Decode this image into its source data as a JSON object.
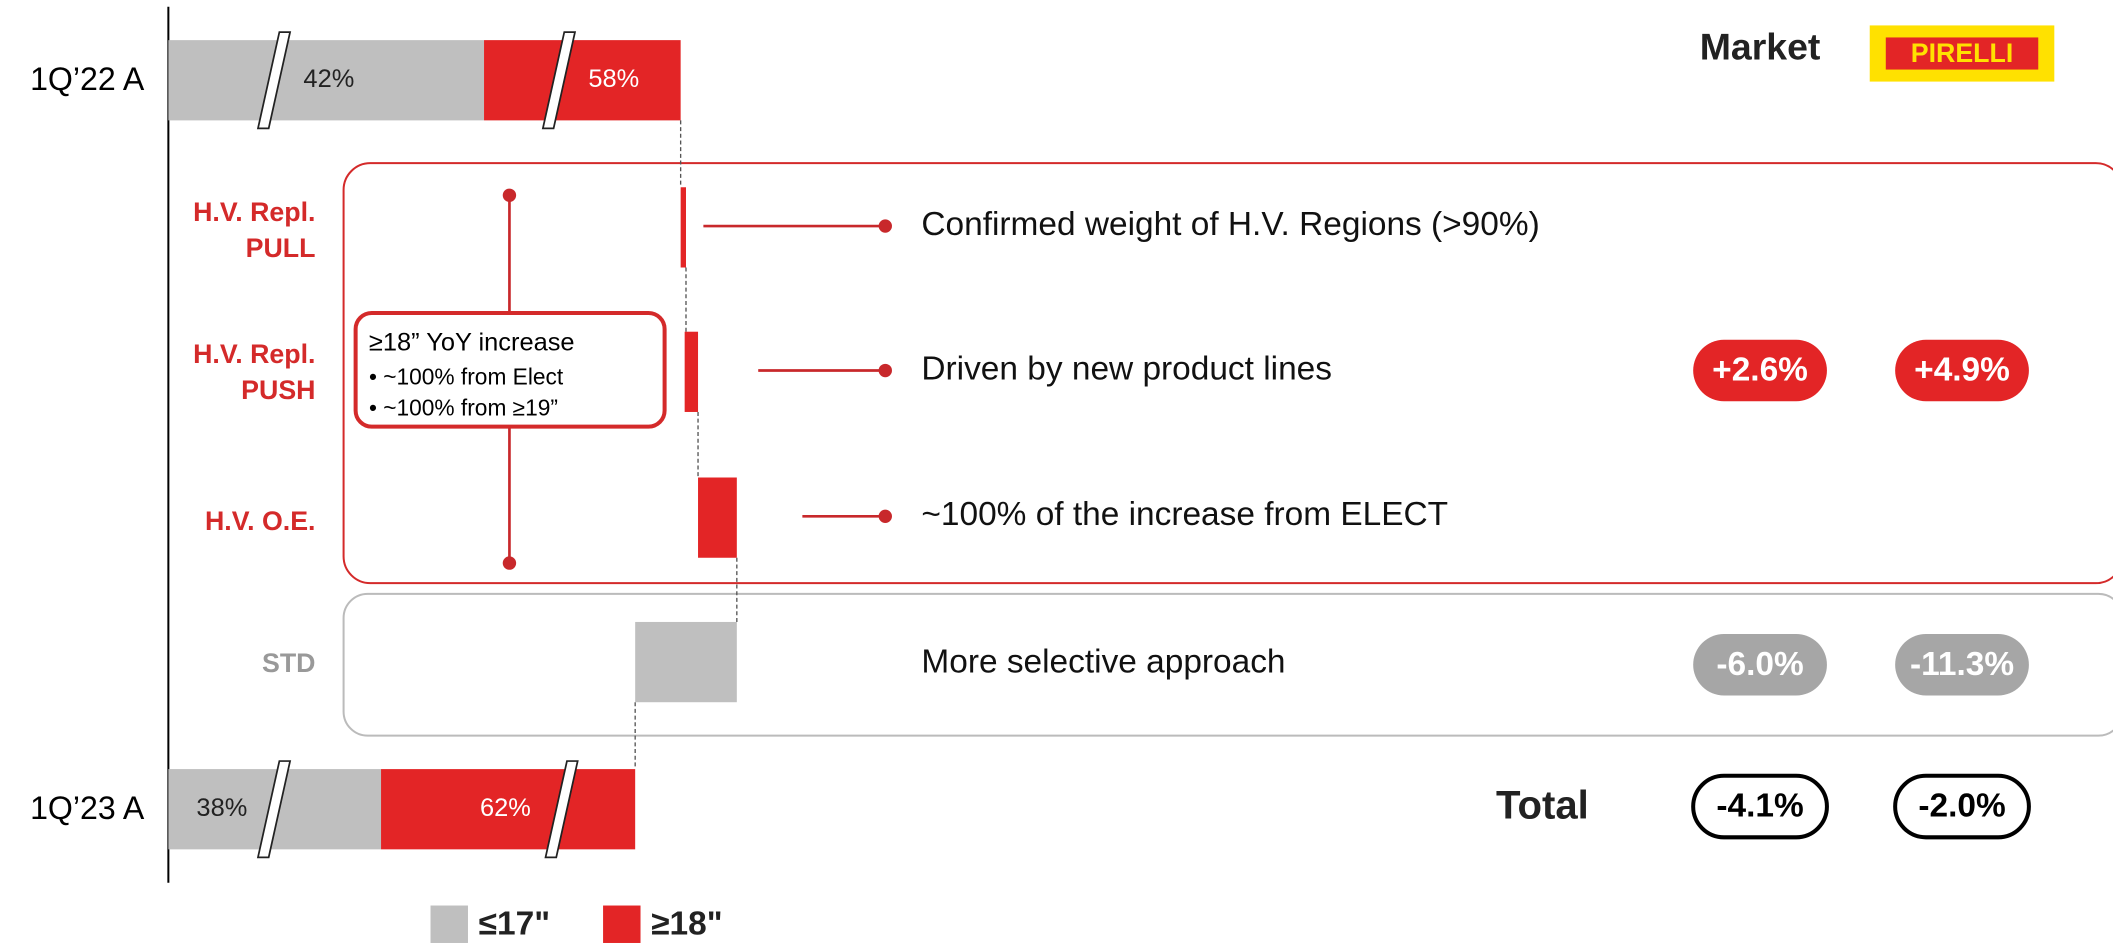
{
  "chart_data": {
    "type": "waterfall",
    "categories": [
      "1Q’22 A",
      "1Q’23 A"
    ],
    "series": [
      {
        "name": "≤17\"",
        "color": "#bfbfbf",
        "values": [
          42,
          38
        ],
        "value_labels": [
          "42%",
          "38%"
        ]
      },
      {
        "name": "≥18\"",
        "color": "#e32526",
        "values": [
          58,
          62
        ],
        "value_labels": [
          "58%",
          "62%"
        ]
      }
    ],
    "steps": [
      {
        "label": [
          "H.V. Repl.",
          "PULL"
        ],
        "note": "Confirmed weight of H.V. Regions (>90%)"
      },
      {
        "label": [
          "H.V. Repl.",
          "PUSH"
        ],
        "note": "Driven by new product lines"
      },
      {
        "label": [
          "H.V. O.E."
        ],
        "note": "~100% of the increase from ELECT"
      },
      {
        "label": [
          "STD"
        ],
        "note": "More selective approach"
      }
    ],
    "callout": {
      "title": "≥18” YoY increase",
      "items": [
        "• ~100% from Elect",
        "• ~100% from ≥19”"
      ]
    },
    "market": {
      "header": "Market",
      "logo": "PIRELLI",
      "hv": [
        "+2.6%",
        "+4.9%"
      ],
      "std": [
        "-6.0%",
        "-11.3%"
      ],
      "total_label": "Total",
      "total": [
        "-4.1%",
        "-2.0%"
      ]
    }
  }
}
